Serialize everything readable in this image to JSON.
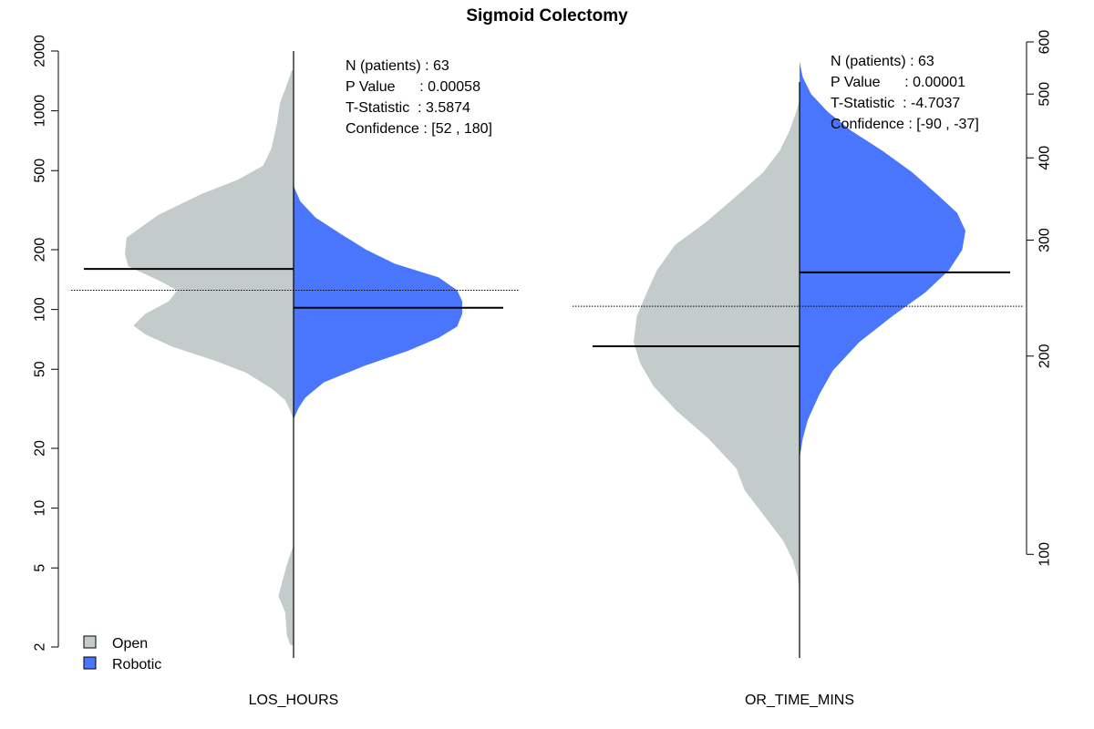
{
  "chart_data": {
    "type": "violin",
    "title": "Sigmoid Colectomy",
    "colors": {
      "Open": "#c3ccca",
      "Robotic": "#4a76fe"
    },
    "legend": {
      "placement": "bottom-left",
      "entries": [
        "Open",
        "Robotic"
      ]
    },
    "panels": [
      {
        "xlabel": "LOS_HOURS",
        "axis_side": "left",
        "scale": "log",
        "ylim": [
          2,
          2000
        ],
        "ticks": [
          2,
          5,
          10,
          20,
          50,
          100,
          200,
          500,
          1000,
          2000
        ],
        "reference_line": 125,
        "stats": {
          "lines": [
            "N (patients) : 63",
            "P Value      : 0.00058",
            "T-Statistic  : 3.5874",
            "Confidence : [52 , 180]"
          ]
        },
        "series": [
          {
            "name": "Open",
            "mean": 160,
            "density": [
              [
                2.05,
                0.02
              ],
              [
                2.3,
                0.04
              ],
              [
                3,
                0.05
              ],
              [
                3.6,
                0.09
              ],
              [
                4.5,
                0.06
              ],
              [
                5.5,
                0.03
              ],
              [
                6.5,
                0
              ],
              [
                28,
                0
              ],
              [
                31,
                0.02
              ],
              [
                35,
                0.05
              ],
              [
                40,
                0.13
              ],
              [
                48,
                0.28
              ],
              [
                55,
                0.46
              ],
              [
                65,
                0.72
              ],
              [
                75,
                0.88
              ],
              [
                83,
                0.95
              ],
              [
                95,
                0.88
              ],
              [
                110,
                0.74
              ],
              [
                125,
                0.69
              ],
              [
                140,
                0.8
              ],
              [
                165,
                0.98
              ],
              [
                190,
                1.0
              ],
              [
                230,
                0.99
              ],
              [
                300,
                0.8
              ],
              [
                380,
                0.55
              ],
              [
                450,
                0.33
              ],
              [
                530,
                0.18
              ],
              [
                650,
                0.13
              ],
              [
                850,
                0.1
              ],
              [
                1100,
                0.08
              ],
              [
                1350,
                0.04
              ],
              [
                1600,
                0.01
              ]
            ]
          },
          {
            "name": "Robotic",
            "mean": 102,
            "density": [
              [
                28,
                0
              ],
              [
                32,
                0.03
              ],
              [
                36,
                0.07
              ],
              [
                43,
                0.18
              ],
              [
                52,
                0.42
              ],
              [
                62,
                0.68
              ],
              [
                72,
                0.86
              ],
              [
                82,
                0.97
              ],
              [
                95,
                1.0
              ],
              [
                110,
                1.0
              ],
              [
                125,
                0.97
              ],
              [
                145,
                0.86
              ],
              [
                170,
                0.6
              ],
              [
                200,
                0.43
              ],
              [
                240,
                0.28
              ],
              [
                290,
                0.13
              ],
              [
                350,
                0.04
              ],
              [
                400,
                0.01
              ],
              [
                420,
                0
              ]
            ]
          }
        ]
      },
      {
        "xlabel": "OR_TIME_MINS",
        "axis_side": "right",
        "scale": "log",
        "ylim": [
          87,
          600
        ],
        "ticks": [
          100,
          200,
          300,
          400,
          500,
          600
        ],
        "reference_line": 238,
        "stats": {
          "lines": [
            "N (patients) : 63",
            "P Value      : 0.00001",
            "T-Statistic  : -4.7037",
            "Confidence : [-90 , -37]"
          ]
        },
        "series": [
          {
            "name": "Open",
            "mean": 207,
            "density": [
              [
                88,
                0
              ],
              [
                92,
                0.01
              ],
              [
                98,
                0.04
              ],
              [
                105,
                0.1
              ],
              [
                115,
                0.22
              ],
              [
                125,
                0.33
              ],
              [
                135,
                0.38
              ],
              [
                150,
                0.55
              ],
              [
                165,
                0.74
              ],
              [
                180,
                0.88
              ],
              [
                195,
                0.96
              ],
              [
                210,
                1.0
              ],
              [
                230,
                0.98
              ],
              [
                250,
                0.92
              ],
              [
                270,
                0.86
              ],
              [
                295,
                0.75
              ],
              [
                320,
                0.56
              ],
              [
                350,
                0.38
              ],
              [
                380,
                0.22
              ],
              [
                410,
                0.12
              ],
              [
                440,
                0.06
              ],
              [
                470,
                0.02
              ],
              [
                490,
                0
              ]
            ]
          },
          {
            "name": "Robotic",
            "mean": 268,
            "density": [
              [
                140,
                0
              ],
              [
                150,
                0.02
              ],
              [
                160,
                0.05
              ],
              [
                175,
                0.12
              ],
              [
                190,
                0.2
              ],
              [
                210,
                0.36
              ],
              [
                230,
                0.56
              ],
              [
                250,
                0.76
              ],
              [
                270,
                0.9
              ],
              [
                290,
                0.98
              ],
              [
                310,
                1.0
              ],
              [
                330,
                0.95
              ],
              [
                350,
                0.84
              ],
              [
                380,
                0.68
              ],
              [
                410,
                0.5
              ],
              [
                440,
                0.31
              ],
              [
                470,
                0.17
              ],
              [
                500,
                0.07
              ],
              [
                530,
                0.02
              ],
              [
                560,
                0
              ]
            ]
          }
        ]
      }
    ]
  }
}
